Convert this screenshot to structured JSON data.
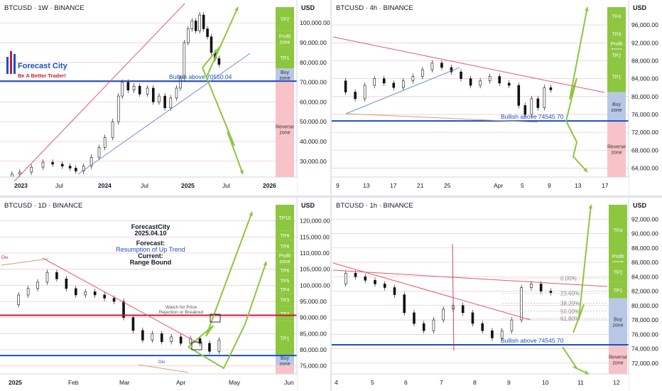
{
  "logo": {
    "name": "Forecast City",
    "tagline": "Be A Better Trader!"
  },
  "chart_data": [
    {
      "type": "candlestick",
      "title": "BTCUSD · 1W · BINANCE",
      "currency_label": "USD",
      "y_ticks": [
        100000,
        90000,
        80000,
        70000,
        60000,
        50000,
        40000,
        30000
      ],
      "ylim": [
        22000,
        108000
      ],
      "x_ticks": [
        "2023",
        "Jul",
        "2024",
        "Jul",
        "2025",
        "Jul",
        "2026"
      ],
      "price_series": [
        [
          0,
          20500
        ],
        [
          4,
          23500
        ],
        [
          8,
          24500
        ],
        [
          14,
          27000
        ],
        [
          20,
          29500
        ],
        [
          25,
          28500
        ],
        [
          30,
          27500
        ],
        [
          34,
          26500
        ],
        [
          37,
          25000
        ],
        [
          41,
          27500
        ],
        [
          45,
          32000
        ],
        [
          49,
          37000
        ],
        [
          52,
          42000
        ],
        [
          56,
          50000
        ],
        [
          59,
          63000
        ],
        [
          61,
          70000
        ],
        [
          64,
          66000
        ],
        [
          67,
          68000
        ],
        [
          70,
          64000
        ],
        [
          74,
          67000
        ],
        [
          77,
          60000
        ],
        [
          80,
          63000
        ],
        [
          83,
          57000
        ],
        [
          86,
          62000
        ],
        [
          89,
          67000
        ],
        [
          91,
          72000
        ],
        [
          93,
          90000
        ],
        [
          95,
          97000
        ],
        [
          97,
          101000
        ],
        [
          99,
          96000
        ],
        [
          101,
          104000
        ],
        [
          103,
          97000
        ],
        [
          105,
          93000
        ],
        [
          107,
          85000
        ],
        [
          109,
          82000
        ],
        [
          111,
          79000
        ]
      ],
      "levels": [
        {
          "label": "Bullish above 70550.04",
          "value": 70550.04,
          "color": "#1c4fc4"
        }
      ],
      "zones": [
        {
          "label": "TP2",
          "from": 108000,
          "to": 96000,
          "color": "#8dc63f"
        },
        {
          "label": "Profit zone",
          "from": 96000,
          "to": 88000,
          "color": "#8dc63f"
        },
        {
          "label": "TP1",
          "from": 88000,
          "to": 77000,
          "color": "#8dc63f"
        },
        {
          "label": "Buy zone",
          "from": 77000,
          "to": 70550,
          "color": "#b8c7e6"
        },
        {
          "label": "Reverse zone",
          "from": 70550,
          "to": 22000,
          "color": "#f8c3c8"
        }
      ]
    },
    {
      "type": "candlestick",
      "title": "BTCUSD · 4h · BINANCE",
      "currency_label": "USD",
      "y_ticks": [
        96000,
        92000,
        88000,
        84000,
        80000,
        76000,
        72000,
        68000,
        64000
      ],
      "ylim": [
        62000,
        100000
      ],
      "x_ticks": [
        "9",
        "13",
        "17",
        "21",
        "25",
        "Apr",
        "5",
        "9",
        "13",
        "17"
      ],
      "price_series": [
        [
          0,
          83500
        ],
        [
          3,
          81000
        ],
        [
          6,
          79500
        ],
        [
          9,
          82500
        ],
        [
          12,
          84000
        ],
        [
          15,
          83000
        ],
        [
          18,
          82000
        ],
        [
          21,
          83500
        ],
        [
          24,
          84500
        ],
        [
          27,
          86000
        ],
        [
          30,
          87500
        ],
        [
          33,
          86500
        ],
        [
          36,
          85500
        ],
        [
          39,
          84000
        ],
        [
          42,
          82500
        ],
        [
          45,
          83500
        ],
        [
          48,
          84500
        ],
        [
          51,
          83000
        ],
        [
          54,
          82500
        ],
        [
          57,
          78000
        ],
        [
          59,
          76000
        ],
        [
          61,
          79500
        ],
        [
          63,
          77500
        ],
        [
          65,
          82000
        ],
        [
          67,
          81500
        ]
      ],
      "levels": [
        {
          "label": "Bullish above 74545.70",
          "value": 74545.7,
          "color": "#1c4fc4"
        }
      ],
      "zones": [
        {
          "label": "TP4",
          "from": 100000,
          "to": 96000,
          "color": "#8dc63f"
        },
        {
          "label": "TP3",
          "from": 96000,
          "to": 92000,
          "color": "#8dc63f"
        },
        {
          "label": "Profit zone",
          "from": 92000,
          "to": 90500,
          "color": "#8dc63f"
        },
        {
          "label": "TP2",
          "from": 90500,
          "to": 88000,
          "color": "#8dc63f"
        },
        {
          "label": "TP1",
          "from": 88000,
          "to": 81000,
          "color": "#8dc63f"
        },
        {
          "label": "Buy zone",
          "from": 81000,
          "to": 74545,
          "color": "#b8c7e6"
        },
        {
          "label": "Reverse zone",
          "from": 74545,
          "to": 62000,
          "color": "#f8c3c8"
        }
      ]
    },
    {
      "type": "candlestick",
      "title": "BTCUSD · 1D · BINANCE",
      "currency_label": "USD",
      "y_ticks": [
        120000,
        115000,
        110000,
        105000,
        100000,
        95000,
        90000,
        85000,
        80000,
        75000
      ],
      "ylim": [
        72500,
        125000
      ],
      "x_ticks": [
        "2025",
        "Feb",
        "Mar",
        "Apr",
        "May",
        "Jun"
      ],
      "price_series": [
        [
          0,
          94000
        ],
        [
          3,
          97000
        ],
        [
          5,
          99000
        ],
        [
          7,
          101000
        ],
        [
          9,
          104000
        ],
        [
          11,
          102000
        ],
        [
          13,
          99000
        ],
        [
          15,
          97000
        ],
        [
          17,
          98000
        ],
        [
          19,
          97000
        ],
        [
          21,
          96000
        ],
        [
          23,
          95000
        ],
        [
          25,
          90000
        ],
        [
          27,
          86000
        ],
        [
          29,
          83000
        ],
        [
          31,
          85000
        ],
        [
          33,
          82500
        ],
        [
          35,
          84000
        ],
        [
          37,
          82000
        ],
        [
          39,
          83500
        ],
        [
          41,
          82000
        ],
        [
          43,
          79500
        ],
        [
          45,
          83000
        ]
      ],
      "levels": [
        {
          "label": "",
          "value": 90700,
          "color": "#c41c38"
        },
        {
          "label": "",
          "value": 78200,
          "color": "#1c4fc4"
        }
      ],
      "zones": [
        {
          "label": "TP10",
          "from": 125000,
          "to": 117000,
          "color": "#8dc63f"
        },
        {
          "label": "TP9",
          "from": 117000,
          "to": 114000,
          "color": "#8dc63f"
        },
        {
          "label": "TP8",
          "from": 114000,
          "to": 110500,
          "color": "#8dc63f"
        },
        {
          "label": "Profit zone",
          "from": 110500,
          "to": 106500,
          "color": "#8dc63f"
        },
        {
          "label": "TP6",
          "from": 106500,
          "to": 103000,
          "color": "#8dc63f"
        },
        {
          "label": "TP5",
          "from": 103000,
          "to": 100000,
          "color": "#8dc63f"
        },
        {
          "label": "TP4",
          "from": 100000,
          "to": 97500,
          "color": "#8dc63f"
        },
        {
          "label": "TP3",
          "from": 97500,
          "to": 93500,
          "color": "#8dc63f"
        },
        {
          "label": "TP2",
          "from": 93500,
          "to": 89000,
          "color": "#8dc63f"
        },
        {
          "label": "TP1",
          "from": 89000,
          "to": 78200,
          "color": "#8dc63f"
        },
        {
          "label": "Buy zone",
          "from": 78200,
          "to": 75200,
          "color": "#b8c7e6"
        },
        {
          "label": "",
          "from": 75200,
          "to": 72500,
          "color": "#f8c3c8"
        }
      ],
      "annotations": {
        "author": "ForecastCity",
        "date": "2025.04.10",
        "forecast_label": "Forecast:",
        "forecast": "Resumption of Up Trend",
        "current_label": "Current:",
        "current": "Range Bound",
        "watch_note_1": "Watch for Price",
        "watch_note_2": "Rejection or Breakout",
        "div_top": "Div",
        "div_bottom": "Div"
      }
    },
    {
      "type": "candlestick",
      "title": "BTCUSD · 1h · BINANCE",
      "currency_label": "USD",
      "y_ticks": [
        92000,
        90000,
        88000,
        86000,
        84000,
        82000,
        80000,
        78000,
        76000,
        74000,
        72000
      ],
      "ylim": [
        70500,
        94000
      ],
      "x_ticks": [
        "4",
        "5",
        "6",
        "7",
        "8",
        "9",
        "10",
        "11",
        "12"
      ],
      "price_series": [
        [
          0,
          83000
        ],
        [
          2,
          84500
        ],
        [
          4,
          84000
        ],
        [
          6,
          83500
        ],
        [
          8,
          83000
        ],
        [
          10,
          82500
        ],
        [
          12,
          81500
        ],
        [
          14,
          79000
        ],
        [
          16,
          77500
        ],
        [
          18,
          76500
        ],
        [
          20,
          78000
        ],
        [
          22,
          79500
        ],
        [
          24,
          80000
        ],
        [
          26,
          79000
        ],
        [
          28,
          77500
        ],
        [
          30,
          76500
        ],
        [
          32,
          75500
        ],
        [
          34,
          76500
        ],
        [
          36,
          78000
        ],
        [
          38,
          82500
        ],
        [
          40,
          83000
        ],
        [
          42,
          82000
        ],
        [
          44,
          81800
        ]
      ],
      "levels": [
        {
          "label": "Bullish above 74545.70",
          "value": 74545.7,
          "color": "#1c4fc4"
        }
      ],
      "fib_levels": [
        {
          "label": "0.00%",
          "value": 83800
        },
        {
          "label": "23.60%",
          "value": 81700
        },
        {
          "label": "38.20%",
          "value": 80300
        },
        {
          "label": "50.00%",
          "value": 79200
        },
        {
          "label": "61.80%",
          "value": 78200
        }
      ],
      "zones": [
        {
          "label": "TP4",
          "from": 94000,
          "to": 87000,
          "color": "#8dc63f"
        },
        {
          "label": "Profit zone",
          "from": 87000,
          "to": 86000,
          "color": "#8dc63f"
        },
        {
          "label": "TP2",
          "from": 86000,
          "to": 83300,
          "color": "#8dc63f"
        },
        {
          "label": "TP1",
          "from": 83300,
          "to": 81000,
          "color": "#8dc63f"
        },
        {
          "label": "Buy zone",
          "from": 81000,
          "to": 74545,
          "color": "#b8c7e6"
        },
        {
          "label": "Reverse zone",
          "from": 74545,
          "to": 70500,
          "color": "#f8c3c8"
        }
      ]
    }
  ]
}
